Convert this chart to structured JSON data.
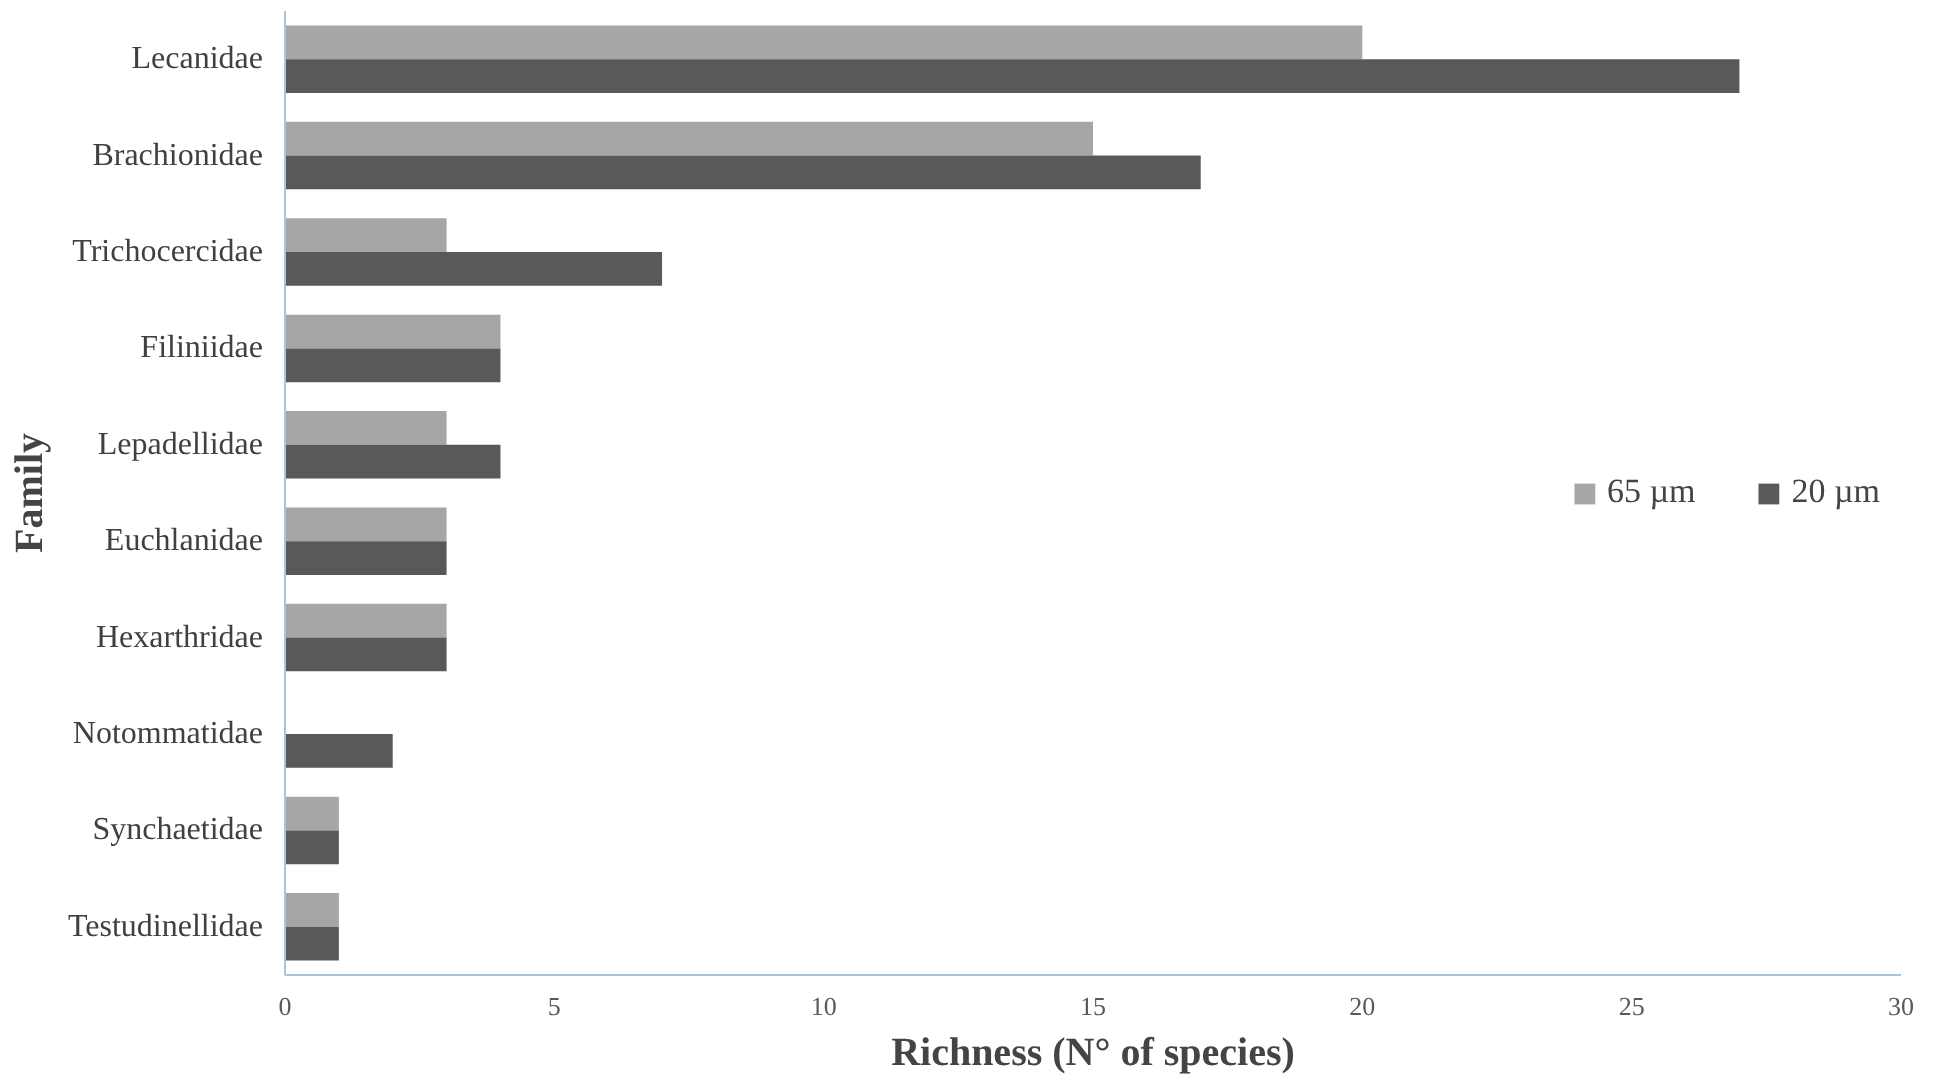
{
  "chart_data": {
    "type": "bar",
    "orientation": "horizontal",
    "xlabel": "Richness (N° of species)",
    "ylabel": "Family",
    "categories": [
      "Lecanidae",
      "Brachionidae",
      "Trichocercidae",
      "Filiniidae",
      "Lepadellidae",
      "Euchlanidae",
      "Hexarthridae",
      "Notommatidae",
      "Synchaetidae",
      "Testudinellidae"
    ],
    "series": [
      {
        "name": "65 µm",
        "color": "#a6a6a6",
        "values": [
          20,
          15,
          3,
          4,
          3,
          3,
          3,
          null,
          1,
          1
        ]
      },
      {
        "name": "20 µm",
        "color": "#595959",
        "values": [
          27,
          17,
          7,
          4,
          4,
          3,
          3,
          2,
          1,
          1
        ]
      }
    ],
    "xlim": [
      0,
      30
    ],
    "xticks": [
      0,
      5,
      10,
      15,
      20,
      25,
      30
    ],
    "grid": false,
    "legend": "right"
  }
}
